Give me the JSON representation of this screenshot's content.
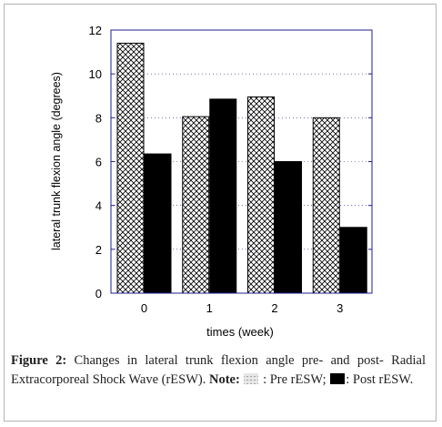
{
  "chart_data": {
    "type": "bar",
    "categories": [
      "0",
      "1",
      "2",
      "3"
    ],
    "series": [
      {
        "name": "Pre rESW",
        "values": [
          11.4,
          8.05,
          8.95,
          8.0
        ],
        "pattern": "crosshatch",
        "color": "#ffffff"
      },
      {
        "name": "Post rESW",
        "values": [
          6.35,
          8.85,
          6.0,
          3.0
        ],
        "pattern": "solid",
        "color": "#000000"
      }
    ],
    "yticks": [
      "0",
      "2",
      "4",
      "6",
      "8",
      "10",
      "12"
    ],
    "ylim": [
      0,
      12
    ],
    "xlabel": "times (week)",
    "ylabel": "lateral trunk flexion angle (degrees)",
    "grid": "dashed horizontal",
    "frame_color": "#1f1f8f"
  },
  "caption": {
    "label": "Figure 2:",
    "text": "Changes in lateral trunk flexion angle pre- and post- Radial Extracorporeal Shock Wave (rESW).",
    "note_label": "Note:",
    "pre_text": ": Pre rESW;",
    "post_text": ": Post rESW."
  }
}
